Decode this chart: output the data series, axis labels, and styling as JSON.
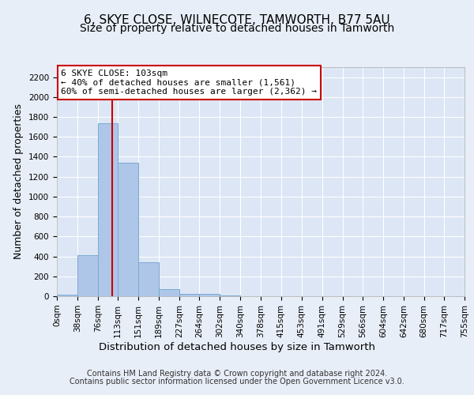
{
  "title1": "6, SKYE CLOSE, WILNECOTE, TAMWORTH, B77 5AU",
  "title2": "Size of property relative to detached houses in Tamworth",
  "xlabel": "Distribution of detached houses by size in Tamworth",
  "ylabel": "Number of detached properties",
  "bin_edges": [
    0,
    38,
    76,
    113,
    151,
    189,
    227,
    264,
    302,
    340,
    378,
    415,
    453,
    491,
    529,
    566,
    604,
    642,
    680,
    717,
    755
  ],
  "bin_labels": [
    "0sqm",
    "38sqm",
    "76sqm",
    "113sqm",
    "151sqm",
    "189sqm",
    "227sqm",
    "264sqm",
    "302sqm",
    "340sqm",
    "378sqm",
    "415sqm",
    "453sqm",
    "491sqm",
    "529sqm",
    "566sqm",
    "604sqm",
    "642sqm",
    "680sqm",
    "717sqm",
    "755sqm"
  ],
  "bar_heights": [
    15,
    415,
    1740,
    1340,
    340,
    75,
    25,
    25,
    5,
    0,
    0,
    0,
    0,
    0,
    0,
    0,
    0,
    0,
    0,
    0
  ],
  "bar_color": "#aec6e8",
  "bar_edge_color": "#7aaad0",
  "property_size": 103,
  "vline_color": "#cc0000",
  "annotation_text": "6 SKYE CLOSE: 103sqm\n← 40% of detached houses are smaller (1,561)\n60% of semi-detached houses are larger (2,362) →",
  "annotation_box_color": "#ffffff",
  "annotation_box_edge": "#cc0000",
  "ylim": [
    0,
    2300
  ],
  "yticks": [
    0,
    200,
    400,
    600,
    800,
    1000,
    1200,
    1400,
    1600,
    1800,
    2000,
    2200
  ],
  "bg_color": "#e8eef8",
  "plot_bg_color": "#dce6f5",
  "footer_line1": "Contains HM Land Registry data © Crown copyright and database right 2024.",
  "footer_line2": "Contains public sector information licensed under the Open Government Licence v3.0.",
  "title1_fontsize": 11,
  "title2_fontsize": 10,
  "xlabel_fontsize": 9.5,
  "ylabel_fontsize": 9,
  "tick_fontsize": 7.5,
  "footer_fontsize": 7,
  "annot_fontsize": 8
}
